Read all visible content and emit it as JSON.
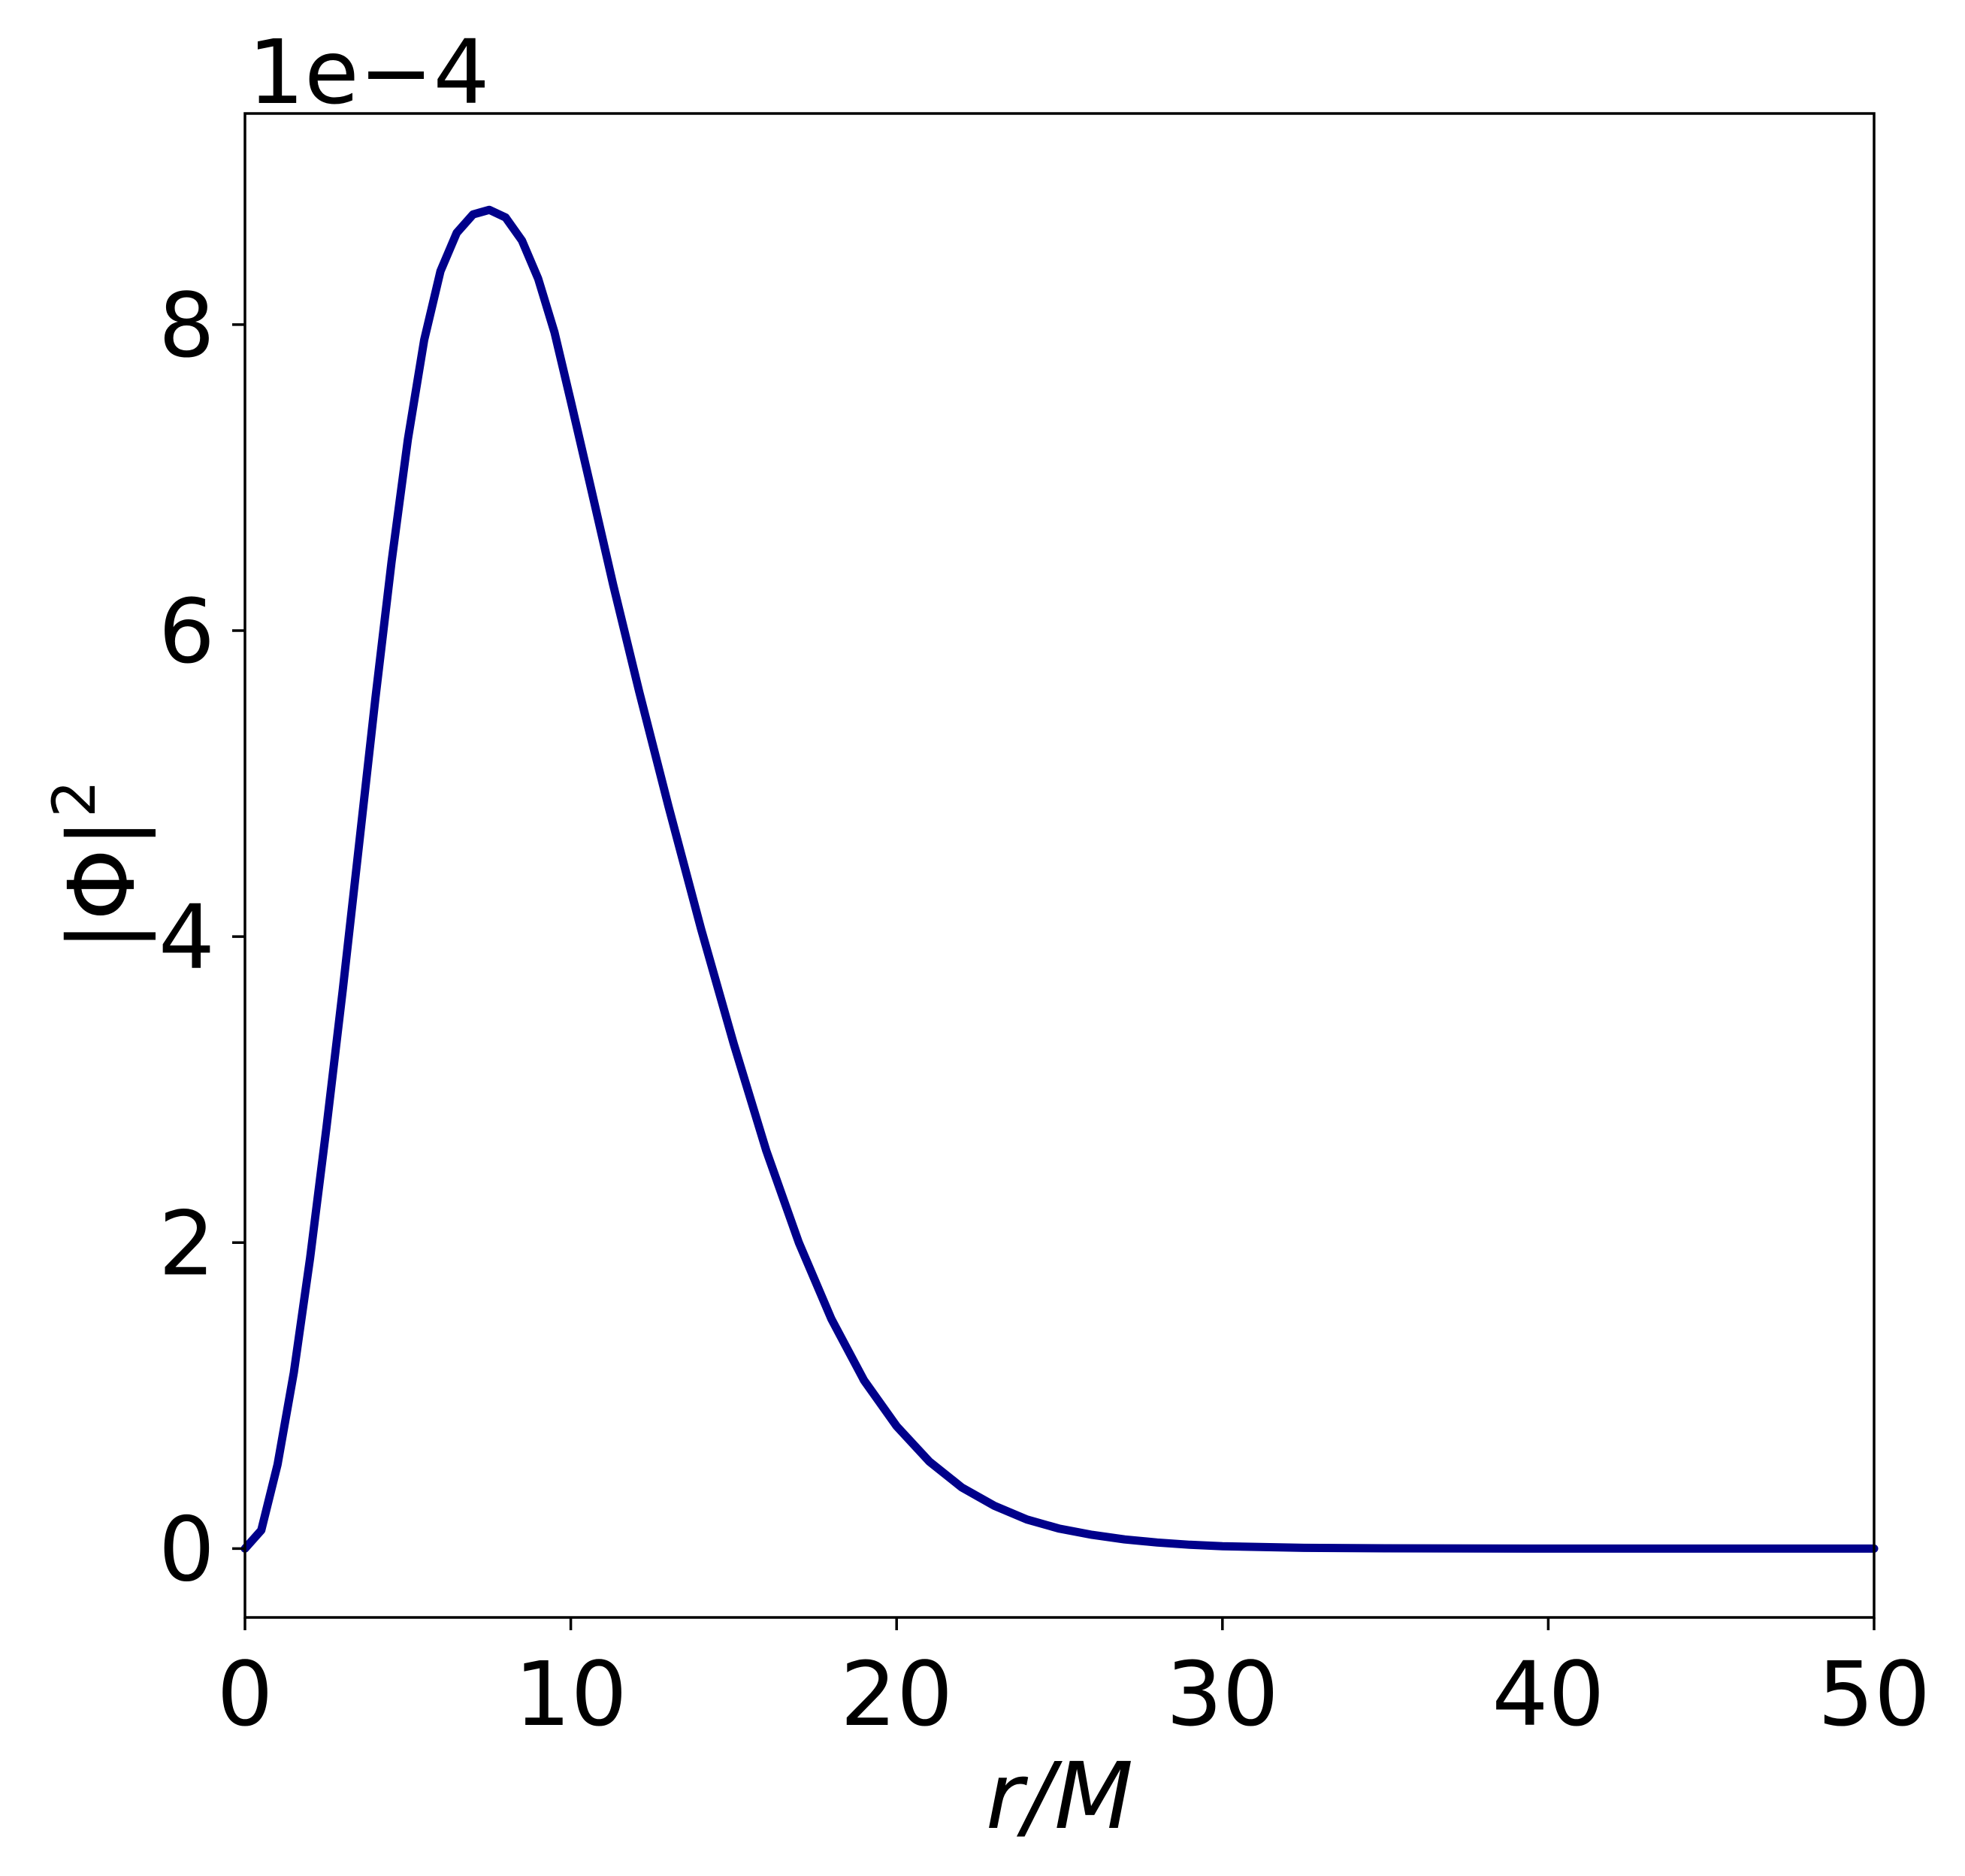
{
  "chart_data": {
    "type": "line",
    "title": "",
    "xlabel": "r/M",
    "ylabel_base": "|Φ|",
    "ylabel_exp": "2",
    "offset_text": "1e−4",
    "xlim": [
      0,
      50
    ],
    "ylim": [
      -0.45,
      9.38
    ],
    "xticks": [
      0,
      10,
      20,
      30,
      40,
      50
    ],
    "yticks": [
      0,
      2,
      4,
      6,
      8
    ],
    "grid": false,
    "line_color": "#00008b",
    "series": [
      {
        "x": [
          0,
          0.5,
          1.0,
          1.5,
          2.0,
          2.5,
          3.0,
          3.5,
          4.0,
          4.5,
          5.0,
          5.5,
          6.0,
          6.5,
          7.0,
          7.5,
          8.0,
          8.5,
          9.0,
          9.5,
          10.0,
          10.6,
          11.3,
          12.1,
          13.0,
          14.0,
          15.0,
          16.0,
          17.0,
          18.0,
          19.0,
          20.0,
          21.0,
          22.0,
          23.0,
          24.0,
          25.0,
          26.0,
          27.0,
          28.0,
          29.0,
          30.0,
          32.5,
          35.0,
          40.0,
          45.0,
          50.0
        ],
        "y": [
          0.0,
          0.12,
          0.55,
          1.15,
          1.9,
          2.75,
          3.65,
          4.6,
          5.55,
          6.45,
          7.25,
          7.9,
          8.35,
          8.6,
          8.72,
          8.75,
          8.7,
          8.55,
          8.3,
          7.95,
          7.5,
          6.95,
          6.3,
          5.6,
          4.85,
          4.05,
          3.3,
          2.6,
          2.0,
          1.5,
          1.1,
          0.8,
          0.57,
          0.4,
          0.28,
          0.19,
          0.13,
          0.09,
          0.06,
          0.04,
          0.025,
          0.015,
          0.005,
          0.002,
          0.0,
          0.0,
          0.0
        ]
      }
    ]
  }
}
